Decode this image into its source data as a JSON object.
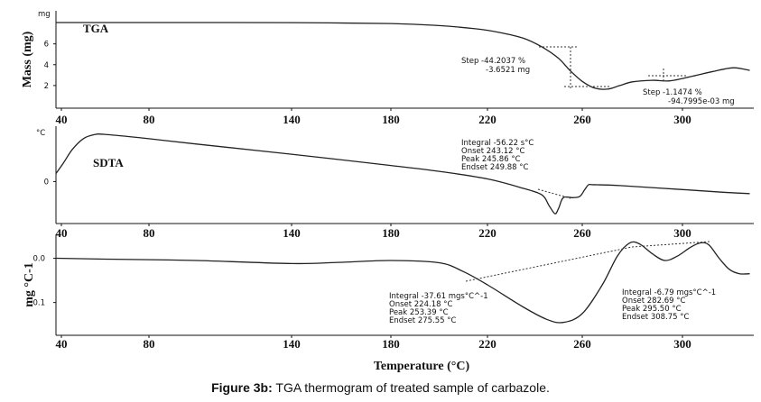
{
  "caption": {
    "prefix": "Figure 3b:",
    "text": " TGA thermogram of treated sample of carbazole."
  },
  "chart_data": [
    {
      "type": "line",
      "panel_label": "TGA",
      "ylabel": "Mass (mg)",
      "yunit": "mg",
      "x_ticks": [
        "40",
        "80",
        "140",
        "180",
        "220",
        "260",
        "300"
      ],
      "y_ticks": [
        "6",
        "4",
        "2"
      ],
      "ylim": [
        0,
        9
      ],
      "xlim": [
        38,
        335
      ],
      "series": [
        {
          "x": [
            38,
            60,
            100,
            140,
            180,
            200,
            215,
            225,
            235,
            243,
            250,
            255,
            260,
            265,
            270,
            275,
            280,
            288,
            295,
            305,
            315,
            325,
            333
          ],
          "y": [
            8.05,
            8.05,
            8.05,
            8.04,
            7.95,
            7.75,
            7.45,
            7.1,
            6.55,
            5.7,
            4.6,
            3.4,
            2.4,
            1.75,
            1.65,
            2.0,
            2.35,
            2.5,
            2.45,
            2.9,
            3.35,
            3.7,
            3.45
          ]
        }
      ],
      "annotations": [
        {
          "text": "Step  -44.2037 %"
        },
        {
          "text": "-3.6521 mg"
        },
        {
          "text": "Step  -1.1474 %"
        },
        {
          "text": "-94.7995e-03 mg"
        }
      ]
    },
    {
      "type": "line",
      "panel_label": "SDTA",
      "yunit": "°C",
      "x_ticks": [
        "40",
        "80",
        "140",
        "180",
        "220",
        "260",
        "300"
      ],
      "y_ticks": [
        "0"
      ],
      "ylim": [
        -1.5,
        2.0
      ],
      "xlim": [
        38,
        335
      ],
      "series": [
        {
          "x": [
            38,
            41,
            45,
            50,
            55,
            60,
            80,
            100,
            140,
            180,
            200,
            220,
            235,
            243,
            246,
            248.5,
            250,
            252,
            256,
            259,
            261,
            262.5,
            264,
            266,
            275,
            300,
            320,
            333
          ],
          "y": [
            0.3,
            0.7,
            1.2,
            1.6,
            1.75,
            1.76,
            1.6,
            1.4,
            1.02,
            0.6,
            0.38,
            0.1,
            -0.25,
            -0.5,
            -0.9,
            -1.2,
            -1.0,
            -0.6,
            -0.6,
            -0.55,
            -0.3,
            -0.12,
            -0.12,
            -0.12,
            -0.15,
            -0.3,
            -0.4,
            -0.45
          ]
        }
      ],
      "annotations": [
        {
          "text": "Integral  -56.22 s°C"
        },
        {
          "text": "Onset     243.12 °C"
        },
        {
          "text": "Peak      245.86 °C"
        },
        {
          "text": "Endset    249.88 °C"
        }
      ]
    },
    {
      "type": "line",
      "ylabel": "mg °C-1",
      "x_ticks": [
        "40",
        "80",
        "140",
        "180",
        "220",
        "260",
        "300"
      ],
      "y_ticks": [
        "0.0",
        "0.1"
      ],
      "ylim": [
        0.17,
        -0.05
      ],
      "xlim": [
        38,
        335
      ],
      "xlabel": "Temperature (°C)",
      "series": [
        {
          "x": [
            38,
            60,
            100,
            140,
            160,
            180,
            200,
            210,
            220,
            235,
            245,
            252,
            260,
            268,
            274,
            279,
            283,
            288,
            293,
            298,
            304,
            309,
            313,
            318,
            323,
            328,
            333
          ],
          "y": [
            0.0,
            0.002,
            0.005,
            0.012,
            0.009,
            0.005,
            0.01,
            0.03,
            0.06,
            0.11,
            0.138,
            0.145,
            0.125,
            0.06,
            -0.005,
            -0.035,
            -0.032,
            -0.01,
            0.005,
            -0.005,
            -0.025,
            -0.035,
            -0.03,
            0.0,
            0.025,
            0.035,
            0.035
          ]
        }
      ],
      "annotations": [
        {
          "text": "Integral  -37.61 mgs°C^-1"
        },
        {
          "text": "Onset     224.18 °C"
        },
        {
          "text": "Peak      253.39 °C"
        },
        {
          "text": "Endset    275.55 °C"
        },
        {
          "text": "Integral  -6.79 mgs°C^-1"
        },
        {
          "text": "Onset     282.69 °C"
        },
        {
          "text": "Peak      295.50 °C"
        },
        {
          "text": "Endset    308.75 °C"
        }
      ]
    }
  ]
}
